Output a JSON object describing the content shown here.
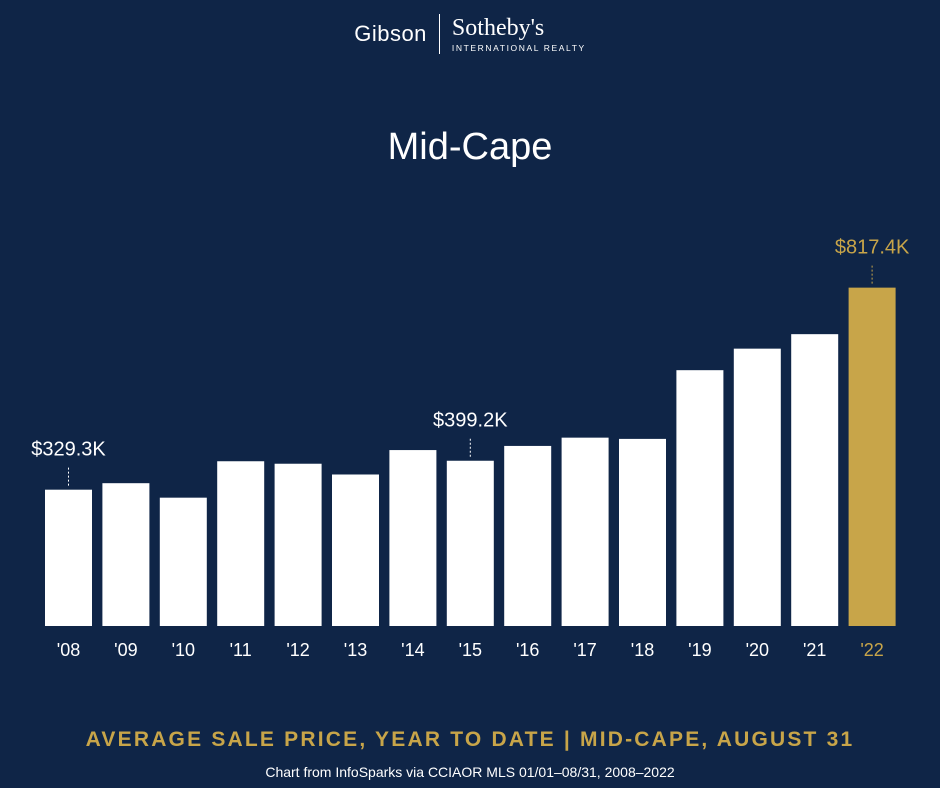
{
  "logo": {
    "left": "Gibson",
    "brand": "Sotheby's",
    "sub": "INTERNATIONAL REALTY"
  },
  "colors": {
    "background": "#0f2547",
    "bar": "#ffffff",
    "highlight": "#c8a549"
  },
  "chart_data": {
    "type": "bar",
    "title": "Mid-Cape",
    "categories": [
      "'08",
      "'09",
      "'10",
      "'11",
      "'12",
      "'13",
      "'14",
      "'15",
      "'16",
      "'17",
      "'18",
      "'19",
      "'20",
      "'21",
      "'22"
    ],
    "values": [
      329.3,
      345,
      310,
      398,
      392,
      366,
      425,
      399.2,
      435,
      455,
      452,
      618,
      670,
      705,
      817.4
    ],
    "unit": "$K",
    "ylim": [
      0,
      860
    ],
    "highlight_index": 14,
    "annotations": [
      {
        "index": 0,
        "label": "$329.3K"
      },
      {
        "index": 7,
        "label": "$399.2K"
      },
      {
        "index": 14,
        "label": "$817.4K"
      }
    ],
    "grid": false
  },
  "caption": "AVERAGE SALE PRICE, YEAR TO DATE | MID-CAPE, AUGUST 31",
  "source": "Chart from InfoSparks via CCIAOR MLS 01/01–08/31, 2008–2022"
}
